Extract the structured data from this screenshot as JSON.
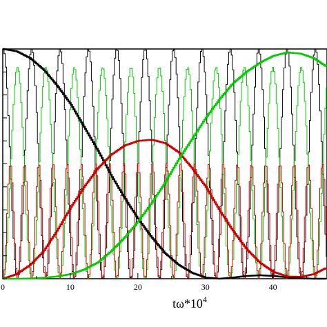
{
  "chart_data": {
    "type": "line",
    "xlabel": "tω*10",
    "xlabel_superscript": "4",
    "x_ticks": [
      0,
      10,
      20,
      30,
      40
    ],
    "xlim": [
      0,
      48
    ],
    "ylim": [
      0,
      1
    ],
    "grid": false,
    "legend": "none",
    "series": [
      {
        "color": "#000000",
        "style": "smooth-envelope",
        "x": [
          0,
          2,
          4,
          6,
          8,
          10,
          12,
          14,
          16,
          18,
          20,
          22,
          24,
          26,
          28,
          30,
          32,
          34,
          36,
          38,
          40,
          42,
          44,
          46,
          48
        ],
        "y": [
          1.0,
          0.99,
          0.96,
          0.91,
          0.84,
          0.76,
          0.66,
          0.56,
          0.45,
          0.35,
          0.26,
          0.18,
          0.11,
          0.06,
          0.025,
          0.005,
          0.0,
          0.005,
          0.012,
          0.015,
          0.012,
          0.006,
          0.002,
          0.0,
          0.0
        ]
      },
      {
        "color": "#cc0000",
        "style": "smooth-envelope",
        "x": [
          0,
          2,
          4,
          6,
          8,
          10,
          12,
          14,
          16,
          18,
          20,
          22,
          24,
          26,
          28,
          30,
          32,
          34,
          36,
          38,
          40,
          42,
          44,
          46,
          48
        ],
        "y": [
          0.0,
          0.02,
          0.06,
          0.12,
          0.21,
          0.31,
          0.4,
          0.48,
          0.54,
          0.58,
          0.6,
          0.605,
          0.59,
          0.55,
          0.48,
          0.4,
          0.3,
          0.21,
          0.13,
          0.07,
          0.03,
          0.01,
          0.008,
          0.02,
          0.05
        ]
      },
      {
        "color": "#00cc00",
        "style": "smooth-envelope",
        "x": [
          0,
          2,
          4,
          6,
          8,
          10,
          12,
          14,
          16,
          18,
          20,
          22,
          24,
          26,
          28,
          30,
          32,
          34,
          36,
          38,
          40,
          42,
          44,
          46,
          48
        ],
        "y": [
          0.0,
          0.0,
          0.001,
          0.004,
          0.01,
          0.02,
          0.04,
          0.07,
          0.12,
          0.18,
          0.25,
          0.33,
          0.42,
          0.52,
          0.61,
          0.7,
          0.78,
          0.85,
          0.9,
          0.94,
          0.97,
          0.985,
          0.98,
          0.96,
          0.92
        ]
      },
      {
        "color": "#000000",
        "style": "fast-oscillation",
        "period": 4.2,
        "phase": 0.0,
        "amplitude_min": 0.0,
        "amplitude_max": 1.0
      },
      {
        "color": "#00cc00",
        "style": "fast-oscillation",
        "period": 4.2,
        "phase": 2.1,
        "amplitude_min": 0.0,
        "amplitude_max": 0.92
      },
      {
        "color": "#cc0000",
        "style": "fast-oscillation",
        "period": 2.1,
        "phase": 1.05,
        "amplitude_min": 0.0,
        "amplitude_max": 0.5
      }
    ]
  }
}
